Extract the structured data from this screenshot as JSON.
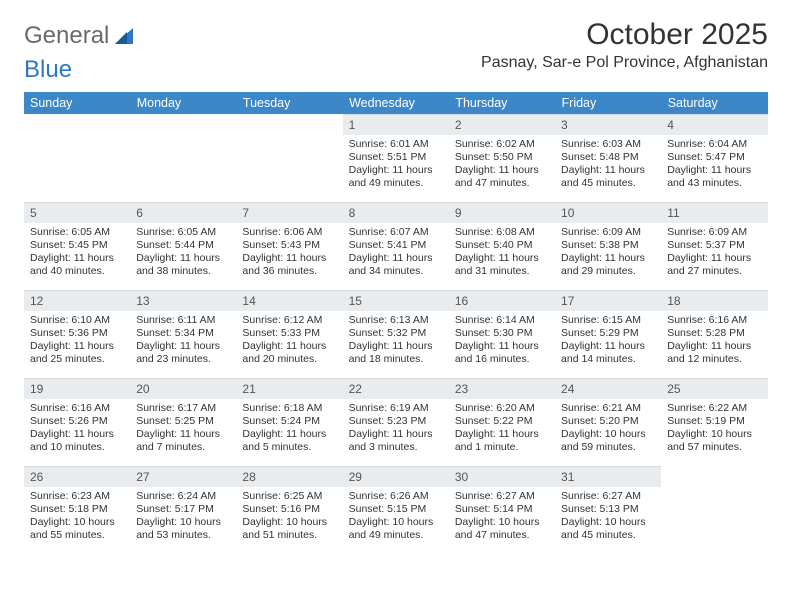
{
  "brand": {
    "part1": "General",
    "part2": "Blue"
  },
  "title": "October 2025",
  "location": "Pasnay, Sar-e Pol Province, Afghanistan",
  "header_bg": "#3b87c8",
  "daynum_bg": "#e9ecef",
  "page_bg": "#ffffff",
  "day_headers": [
    "Sunday",
    "Monday",
    "Tuesday",
    "Wednesday",
    "Thursday",
    "Friday",
    "Saturday"
  ],
  "weeks": [
    [
      {
        "n": "",
        "lines": []
      },
      {
        "n": "",
        "lines": []
      },
      {
        "n": "",
        "lines": []
      },
      {
        "n": "1",
        "lines": [
          "Sunrise: 6:01 AM",
          "Sunset: 5:51 PM",
          "Daylight: 11 hours",
          "and 49 minutes."
        ]
      },
      {
        "n": "2",
        "lines": [
          "Sunrise: 6:02 AM",
          "Sunset: 5:50 PM",
          "Daylight: 11 hours",
          "and 47 minutes."
        ]
      },
      {
        "n": "3",
        "lines": [
          "Sunrise: 6:03 AM",
          "Sunset: 5:48 PM",
          "Daylight: 11 hours",
          "and 45 minutes."
        ]
      },
      {
        "n": "4",
        "lines": [
          "Sunrise: 6:04 AM",
          "Sunset: 5:47 PM",
          "Daylight: 11 hours",
          "and 43 minutes."
        ]
      }
    ],
    [
      {
        "n": "5",
        "lines": [
          "Sunrise: 6:05 AM",
          "Sunset: 5:45 PM",
          "Daylight: 11 hours",
          "and 40 minutes."
        ]
      },
      {
        "n": "6",
        "lines": [
          "Sunrise: 6:05 AM",
          "Sunset: 5:44 PM",
          "Daylight: 11 hours",
          "and 38 minutes."
        ]
      },
      {
        "n": "7",
        "lines": [
          "Sunrise: 6:06 AM",
          "Sunset: 5:43 PM",
          "Daylight: 11 hours",
          "and 36 minutes."
        ]
      },
      {
        "n": "8",
        "lines": [
          "Sunrise: 6:07 AM",
          "Sunset: 5:41 PM",
          "Daylight: 11 hours",
          "and 34 minutes."
        ]
      },
      {
        "n": "9",
        "lines": [
          "Sunrise: 6:08 AM",
          "Sunset: 5:40 PM",
          "Daylight: 11 hours",
          "and 31 minutes."
        ]
      },
      {
        "n": "10",
        "lines": [
          "Sunrise: 6:09 AM",
          "Sunset: 5:38 PM",
          "Daylight: 11 hours",
          "and 29 minutes."
        ]
      },
      {
        "n": "11",
        "lines": [
          "Sunrise: 6:09 AM",
          "Sunset: 5:37 PM",
          "Daylight: 11 hours",
          "and 27 minutes."
        ]
      }
    ],
    [
      {
        "n": "12",
        "lines": [
          "Sunrise: 6:10 AM",
          "Sunset: 5:36 PM",
          "Daylight: 11 hours",
          "and 25 minutes."
        ]
      },
      {
        "n": "13",
        "lines": [
          "Sunrise: 6:11 AM",
          "Sunset: 5:34 PM",
          "Daylight: 11 hours",
          "and 23 minutes."
        ]
      },
      {
        "n": "14",
        "lines": [
          "Sunrise: 6:12 AM",
          "Sunset: 5:33 PM",
          "Daylight: 11 hours",
          "and 20 minutes."
        ]
      },
      {
        "n": "15",
        "lines": [
          "Sunrise: 6:13 AM",
          "Sunset: 5:32 PM",
          "Daylight: 11 hours",
          "and 18 minutes."
        ]
      },
      {
        "n": "16",
        "lines": [
          "Sunrise: 6:14 AM",
          "Sunset: 5:30 PM",
          "Daylight: 11 hours",
          "and 16 minutes."
        ]
      },
      {
        "n": "17",
        "lines": [
          "Sunrise: 6:15 AM",
          "Sunset: 5:29 PM",
          "Daylight: 11 hours",
          "and 14 minutes."
        ]
      },
      {
        "n": "18",
        "lines": [
          "Sunrise: 6:16 AM",
          "Sunset: 5:28 PM",
          "Daylight: 11 hours",
          "and 12 minutes."
        ]
      }
    ],
    [
      {
        "n": "19",
        "lines": [
          "Sunrise: 6:16 AM",
          "Sunset: 5:26 PM",
          "Daylight: 11 hours",
          "and 10 minutes."
        ]
      },
      {
        "n": "20",
        "lines": [
          "Sunrise: 6:17 AM",
          "Sunset: 5:25 PM",
          "Daylight: 11 hours",
          "and 7 minutes."
        ]
      },
      {
        "n": "21",
        "lines": [
          "Sunrise: 6:18 AM",
          "Sunset: 5:24 PM",
          "Daylight: 11 hours",
          "and 5 minutes."
        ]
      },
      {
        "n": "22",
        "lines": [
          "Sunrise: 6:19 AM",
          "Sunset: 5:23 PM",
          "Daylight: 11 hours",
          "and 3 minutes."
        ]
      },
      {
        "n": "23",
        "lines": [
          "Sunrise: 6:20 AM",
          "Sunset: 5:22 PM",
          "Daylight: 11 hours",
          "and 1 minute."
        ]
      },
      {
        "n": "24",
        "lines": [
          "Sunrise: 6:21 AM",
          "Sunset: 5:20 PM",
          "Daylight: 10 hours",
          "and 59 minutes."
        ]
      },
      {
        "n": "25",
        "lines": [
          "Sunrise: 6:22 AM",
          "Sunset: 5:19 PM",
          "Daylight: 10 hours",
          "and 57 minutes."
        ]
      }
    ],
    [
      {
        "n": "26",
        "lines": [
          "Sunrise: 6:23 AM",
          "Sunset: 5:18 PM",
          "Daylight: 10 hours",
          "and 55 minutes."
        ]
      },
      {
        "n": "27",
        "lines": [
          "Sunrise: 6:24 AM",
          "Sunset: 5:17 PM",
          "Daylight: 10 hours",
          "and 53 minutes."
        ]
      },
      {
        "n": "28",
        "lines": [
          "Sunrise: 6:25 AM",
          "Sunset: 5:16 PM",
          "Daylight: 10 hours",
          "and 51 minutes."
        ]
      },
      {
        "n": "29",
        "lines": [
          "Sunrise: 6:26 AM",
          "Sunset: 5:15 PM",
          "Daylight: 10 hours",
          "and 49 minutes."
        ]
      },
      {
        "n": "30",
        "lines": [
          "Sunrise: 6:27 AM",
          "Sunset: 5:14 PM",
          "Daylight: 10 hours",
          "and 47 minutes."
        ]
      },
      {
        "n": "31",
        "lines": [
          "Sunrise: 6:27 AM",
          "Sunset: 5:13 PM",
          "Daylight: 10 hours",
          "and 45 minutes."
        ]
      },
      {
        "n": "",
        "lines": []
      }
    ]
  ]
}
